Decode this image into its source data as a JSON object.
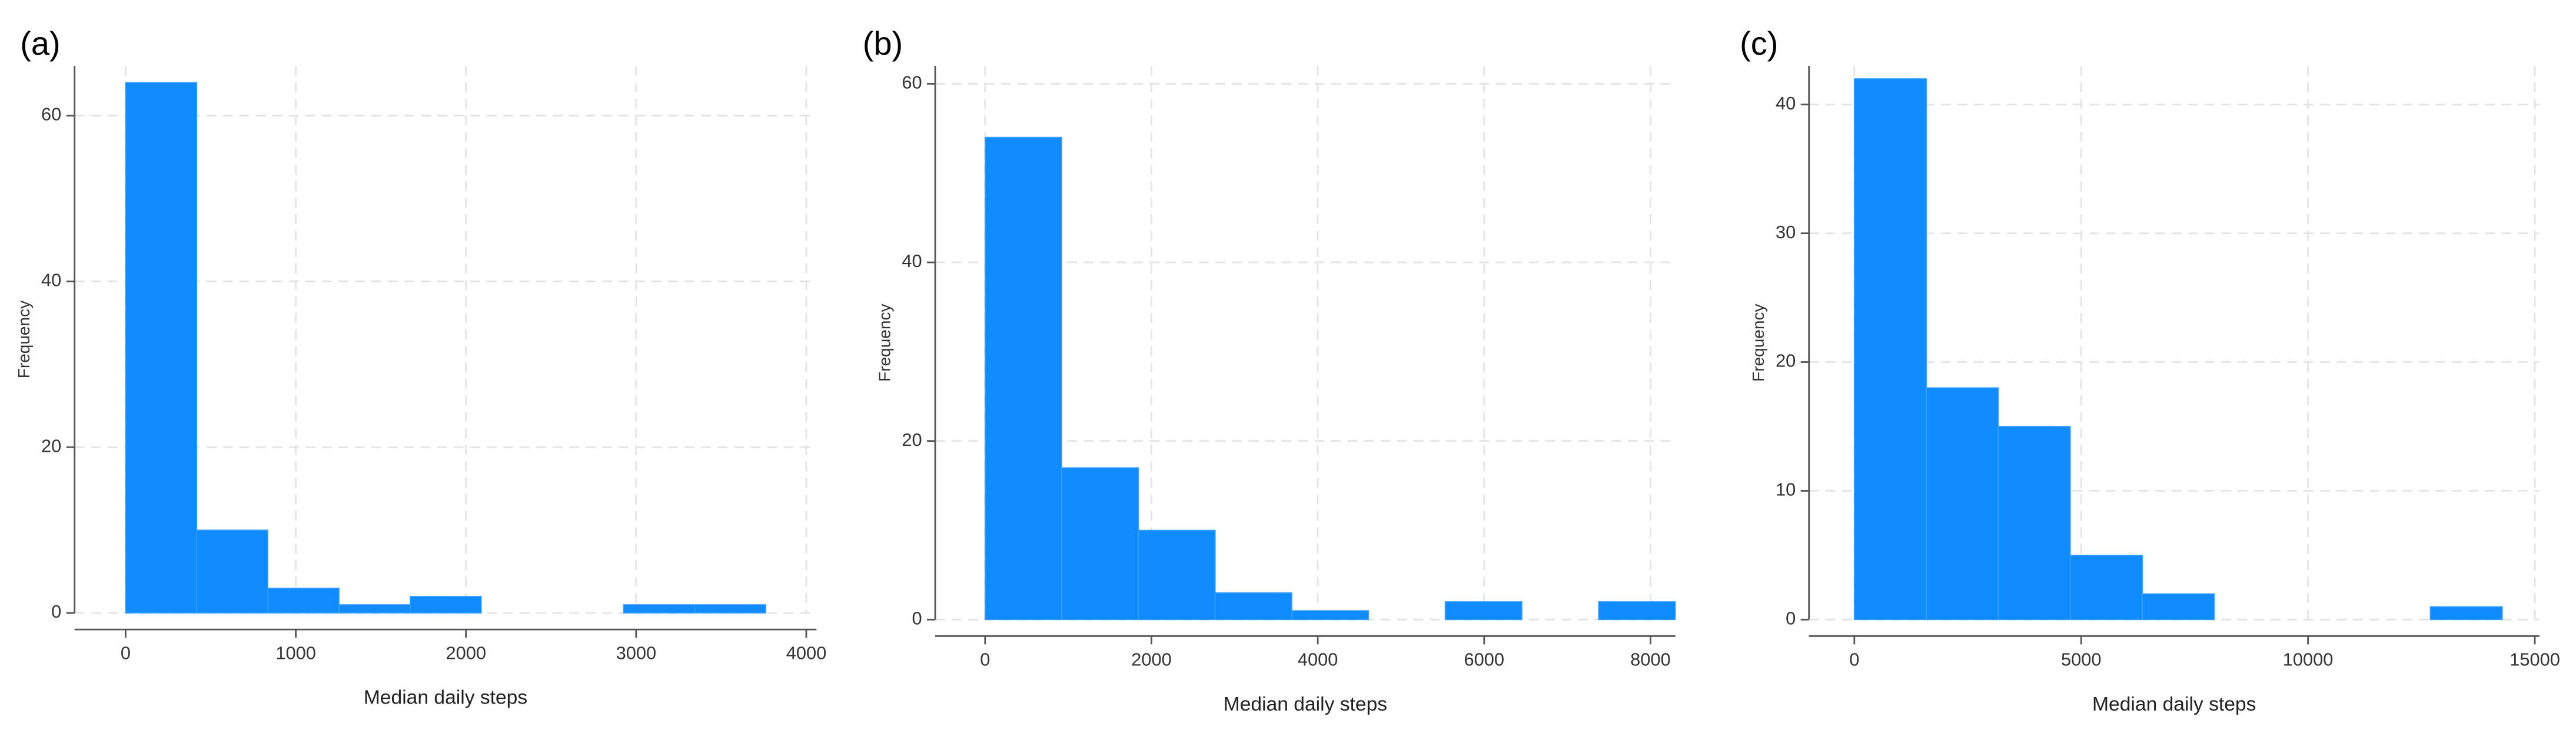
{
  "chart_data": [
    {
      "type": "histogram",
      "title": "(a)",
      "x_label": "Median daily steps",
      "y_label": "Frequency",
      "bins": [
        0,
        418,
        836,
        1254,
        1672,
        2090,
        2508,
        2926,
        3344,
        3762
      ],
      "values": [
        64,
        10,
        3,
        1,
        2,
        0,
        0,
        1,
        1
      ],
      "color": "#0f8bff",
      "xlim": [
        -300,
        4060
      ],
      "xticks": [
        0,
        1000,
        2000,
        3000,
        4000
      ],
      "ylim": [
        0,
        66
      ],
      "yticks": [
        0,
        20,
        40,
        60
      ],
      "grid": true
    },
    {
      "type": "histogram",
      "title": "(b)",
      "x_label": "Median daily steps",
      "y_label": "Frequency",
      "bins": [
        0,
        922,
        1844,
        2766,
        3688,
        4610,
        5532,
        6454,
        7376,
        8298
      ],
      "values": [
        54,
        17,
        10,
        3,
        1,
        0,
        2,
        0,
        2
      ],
      "color": "#0f8bff",
      "xlim": [
        -600,
        8300
      ],
      "xticks": [
        0,
        2000,
        4000,
        6000,
        8000
      ],
      "ylim": [
        0,
        62
      ],
      "yticks": [
        0,
        20,
        40,
        60
      ],
      "grid": true
    },
    {
      "type": "histogram",
      "title": "(c)",
      "x_label": "Median daily steps",
      "y_label": "Frequency",
      "bins": [
        0,
        1587,
        3174,
        4761,
        6348,
        7935,
        9522,
        11109,
        12696,
        14283
      ],
      "values": [
        42,
        18,
        15,
        5,
        2,
        0,
        0,
        0,
        1
      ],
      "color": "#0f8bff",
      "xlim": [
        -1000,
        15100
      ],
      "xticks": [
        0,
        5000,
        10000,
        15000
      ],
      "ylim": [
        0,
        43
      ],
      "yticks": [
        0,
        10,
        20,
        30,
        40
      ],
      "grid": true
    }
  ]
}
